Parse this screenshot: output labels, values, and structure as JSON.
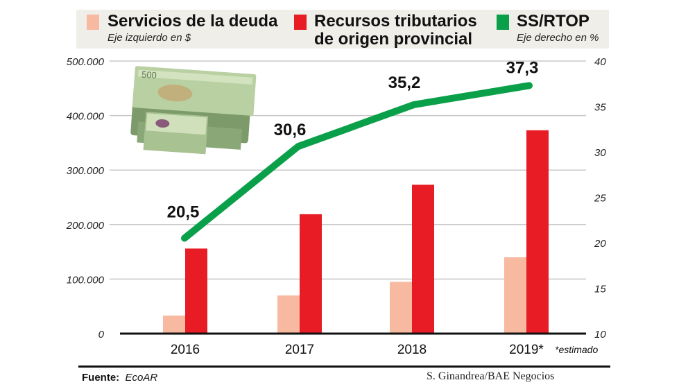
{
  "legend": {
    "items": [
      {
        "label": "Servicios de la deuda",
        "sub": "Eje izquierdo en $",
        "color": "#f7b9a0"
      },
      {
        "label": "Recursos tributarios",
        "label2": "de origen provincial",
        "color": "#e81c24"
      },
      {
        "label": "SS/RTOP",
        "sub": "Eje derecho en %",
        "color": "#0aa04a"
      }
    ]
  },
  "chart_data": {
    "type": "bar+line",
    "categories": [
      "2016",
      "2017",
      "2018",
      "2019*"
    ],
    "note": "*estimado",
    "left_axis": {
      "ylim": [
        0,
        500000
      ],
      "ticks": [
        "0",
        "100.000",
        "200.000",
        "300.000",
        "400.000",
        "500.000"
      ],
      "tick_values": [
        0,
        100000,
        200000,
        300000,
        400000,
        500000
      ]
    },
    "right_axis": {
      "ylim": [
        10,
        40
      ],
      "ticks": [
        "10",
        "15",
        "20",
        "25",
        "30",
        "35",
        "40"
      ],
      "tick_values": [
        10,
        15,
        20,
        25,
        30,
        35,
        40
      ]
    },
    "series": [
      {
        "name": "Servicios de la deuda",
        "axis": "left",
        "kind": "bar",
        "color": "#f7b9a0",
        "values": [
          33000,
          70000,
          95000,
          140000
        ]
      },
      {
        "name": "Recursos tributarios de origen provincial",
        "axis": "left",
        "kind": "bar",
        "color": "#e81c24",
        "values": [
          156000,
          219000,
          273000,
          373000
        ]
      },
      {
        "name": "SS/RTOP",
        "axis": "right",
        "kind": "line",
        "color": "#0aa04a",
        "values": [
          20.5,
          30.6,
          35.2,
          37.3
        ],
        "labels": [
          "20,5",
          "30,6",
          "35,2",
          "37,3"
        ]
      }
    ],
    "grid": true
  },
  "footer": {
    "source_label": "Fuente:",
    "source": "EcoAR",
    "credit": "S. Ginandrea/BAE Negocios"
  },
  "image": {
    "icon": "money-stack-icon"
  }
}
